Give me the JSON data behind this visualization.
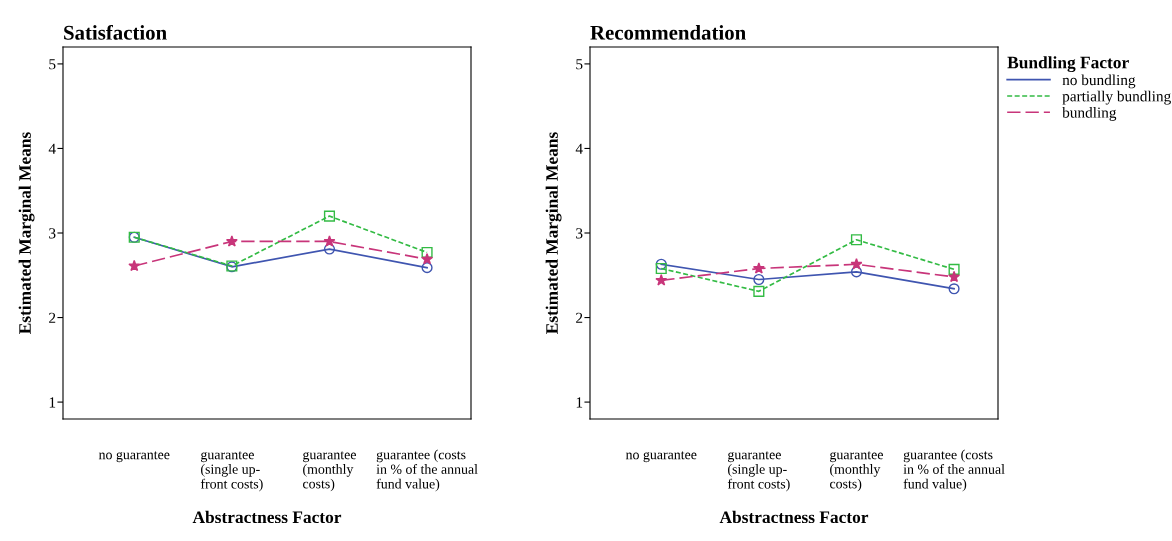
{
  "chart_data": [
    {
      "type": "line",
      "title": "Satisfaction",
      "xlabel": "Abstractness Factor",
      "ylabel": "Estimated Marginal Means",
      "categories": [
        "no guarantee",
        "guarantee (single up-front costs)",
        "guarantee (monthly costs)",
        "guarantee (costs in % of the annual fund value)"
      ],
      "ylim": [
        0.8,
        5.2
      ],
      "yticks": [
        1,
        2,
        3,
        4,
        5
      ],
      "grid": false,
      "series": [
        {
          "color": "#3f55b0",
          "marker": "circle",
          "line_style": "solid",
          "values": [
            2.95,
            2.6,
            2.81,
            2.59
          ]
        },
        {
          "color": "#33bb44",
          "marker": "square",
          "line_style": "dotted",
          "values": [
            2.95,
            2.61,
            3.2,
            2.77
          ]
        },
        {
          "color": "#c8357a",
          "marker": "star",
          "line_style": "dashed",
          "values": [
            2.61,
            2.9,
            2.9,
            2.69
          ]
        }
      ]
    },
    {
      "type": "line",
      "title": "Recommendation",
      "xlabel": "Abstractness Factor",
      "ylabel": "Estimated Marginal Means",
      "legend_title": "Bundling Factor",
      "categories": [
        "no guarantee",
        "guarantee (single up-front costs)",
        "guarantee (monthly costs)",
        "guarantee (costs in % of the annual fund value)"
      ],
      "ylim": [
        0.8,
        5.2
      ],
      "yticks": [
        1,
        2,
        3,
        4,
        5
      ],
      "grid": false,
      "legend": "right",
      "series": [
        {
          "name": "no bundling",
          "color": "#3f55b0",
          "marker": "circle",
          "line_style": "solid",
          "values": [
            2.63,
            2.45,
            2.54,
            2.34
          ]
        },
        {
          "name": "partially bundling",
          "color": "#33bb44",
          "marker": "square",
          "line_style": "dotted",
          "values": [
            2.58,
            2.31,
            2.92,
            2.57
          ]
        },
        {
          "name": "bundling",
          "color": "#c8357a",
          "marker": "star",
          "line_style": "dashed",
          "values": [
            2.44,
            2.58,
            2.63,
            2.48
          ]
        }
      ]
    }
  ]
}
